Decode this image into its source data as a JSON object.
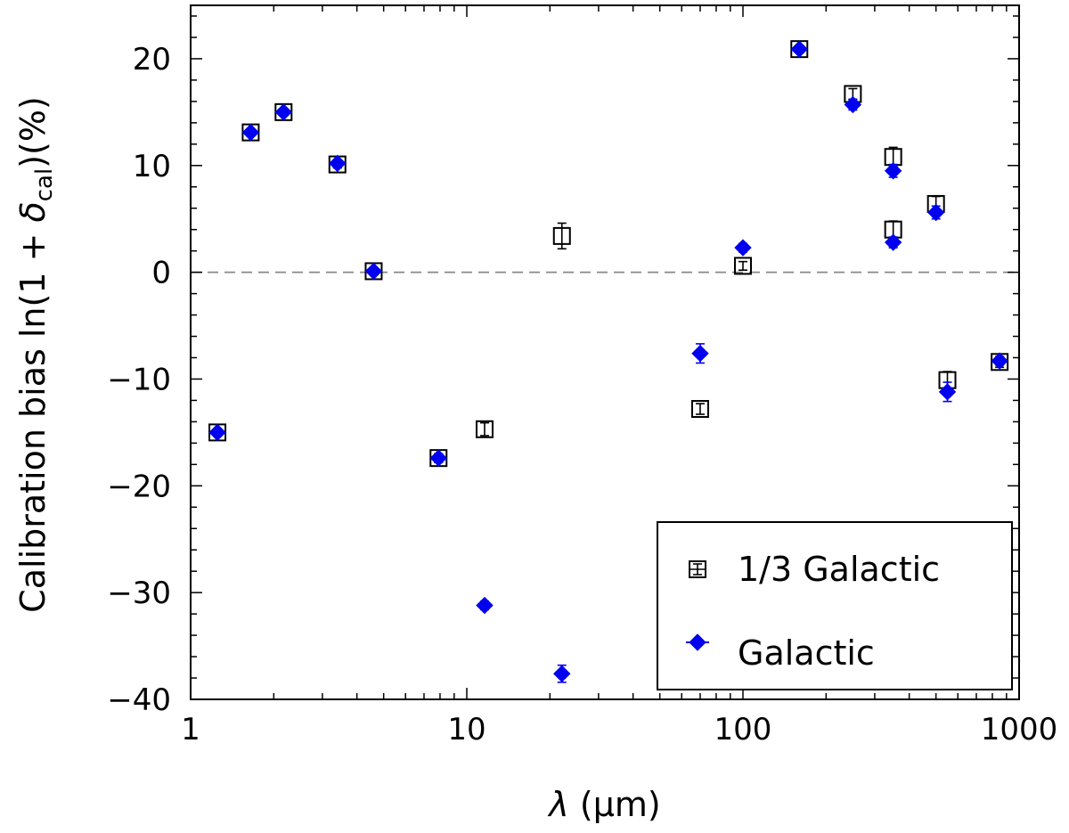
{
  "chart_data": {
    "type": "scatter",
    "xscale": "log",
    "xlim": [
      1,
      1000
    ],
    "ylim": [
      -40,
      25
    ],
    "xlabel": "λ (μm)",
    "ylabel": "Calibration bias ln(1 + δcal)(%)",
    "ylabel_parts": {
      "prefix": "Calibration bias ln(1 + ",
      "delta": "δ",
      "sub": "cal",
      "suffix": ")(%)"
    },
    "xlabel_parts": {
      "lambda": "λ",
      "unit": "(μm)"
    },
    "xticks": [
      1,
      10,
      100,
      1000
    ],
    "xtick_labels": [
      "1",
      "10",
      "100",
      "1000"
    ],
    "yticks": [
      -40,
      -30,
      -20,
      -10,
      0,
      10,
      20
    ],
    "ytick_labels": [
      "−40",
      "−30",
      "−20",
      "−10",
      "0",
      "10",
      "20"
    ],
    "reference_line": {
      "y": 0,
      "style": "dashed"
    },
    "legend_position": "bottom-right",
    "colors": {
      "third": "#000000",
      "galactic": "#0000ee",
      "refline": "#888888"
    },
    "series": [
      {
        "name": "1/3 Galactic",
        "marker": "open-square",
        "x": [
          1.25,
          1.65,
          2.17,
          3.4,
          4.6,
          7.9,
          11.6,
          22.1,
          70,
          100,
          160,
          250,
          350,
          350,
          500,
          550,
          850
        ],
        "y": [
          -15.0,
          13.1,
          15.0,
          10.1,
          0.1,
          -17.4,
          -14.7,
          3.4,
          -12.8,
          0.6,
          20.9,
          16.7,
          10.8,
          4.0,
          6.4,
          -10.1,
          -8.4
        ],
        "err": [
          0.3,
          0.3,
          0.3,
          0.3,
          0.3,
          0.4,
          0.6,
          1.2,
          0.5,
          0.4,
          0.3,
          0.5,
          0.9,
          0.8,
          0.7,
          0.8,
          0.5
        ]
      },
      {
        "name": "Galactic",
        "marker": "filled-diamond",
        "x": [
          1.25,
          1.65,
          2.17,
          3.4,
          4.6,
          7.9,
          11.6,
          22.1,
          70,
          100,
          160,
          250,
          350,
          350,
          500,
          550,
          850
        ],
        "y": [
          -15.0,
          13.1,
          15.0,
          10.2,
          0.1,
          -17.4,
          -31.2,
          -37.6,
          -7.6,
          2.3,
          20.9,
          15.7,
          9.5,
          2.8,
          5.6,
          -11.2,
          -8.3
        ],
        "err": [
          0.3,
          0.3,
          0.3,
          0.3,
          0.3,
          0.4,
          0.4,
          0.8,
          0.9,
          0.4,
          0.3,
          0.5,
          0.6,
          0.5,
          0.6,
          0.9,
          0.4
        ]
      }
    ]
  }
}
